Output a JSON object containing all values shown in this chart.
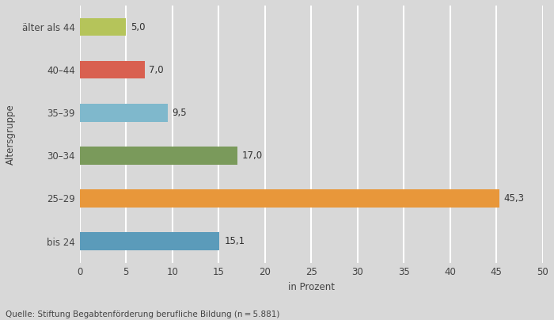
{
  "categories": [
    "bis 24",
    "25–29",
    "30–34",
    "35–39",
    "40–44",
    "älter als 44"
  ],
  "values": [
    15.1,
    45.3,
    17.0,
    9.5,
    7.0,
    5.0
  ],
  "bar_colors": [
    "#5b9bba",
    "#e8973a",
    "#7a9a5b",
    "#7fb8cc",
    "#d96050",
    "#b5c45a"
  ],
  "value_labels": [
    "15,1",
    "45,3",
    "17,0",
    "9,5",
    "7,0",
    "5,0"
  ],
  "xlabel": "in Prozent",
  "ylabel": "Altersgruppe",
  "xlim": [
    0,
    50
  ],
  "xticks": [
    0,
    5,
    10,
    15,
    20,
    25,
    30,
    35,
    40,
    45,
    50
  ],
  "background_color": "#d8d8d8",
  "plot_bg_color": "#d8d8d8",
  "grid_color": "#ffffff",
  "bar_height": 0.42,
  "source_text": "Quelle: Stiftung Begabtenförderung berufliche Bildung (n = 5.881)",
  "label_fontsize": 8.5,
  "tick_fontsize": 8.5,
  "source_fontsize": 7.5,
  "xlabel_fontsize": 8.5,
  "ylabel_fontsize": 8.5
}
